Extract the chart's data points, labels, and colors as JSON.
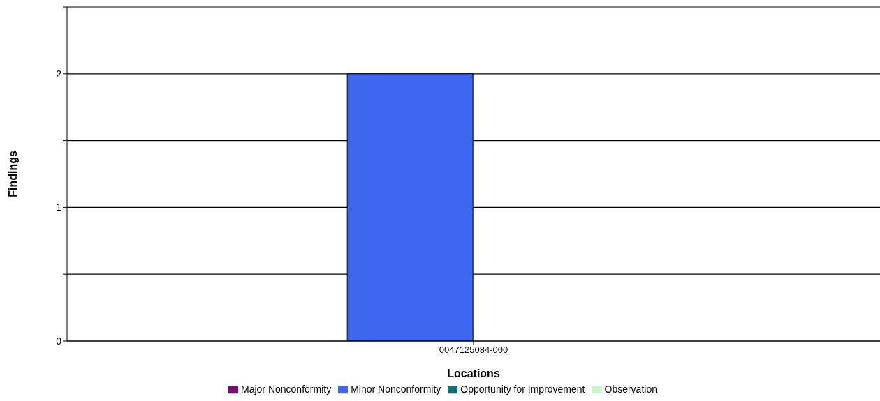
{
  "chart_data": {
    "type": "bar",
    "xlabel": "Locations",
    "ylabel": "Findings",
    "categories": [
      "0047125084-000"
    ],
    "series": [
      {
        "name": "Major Nonconformity",
        "color": "#7d0b72",
        "values": [
          0
        ]
      },
      {
        "name": "Minor Nonconformity",
        "color": "#3f66ef",
        "values": [
          2
        ]
      },
      {
        "name": "Opportunity for Improvement",
        "color": "#0a7373",
        "values": [
          0
        ]
      },
      {
        "name": "Observation",
        "color": "#ccf5cc",
        "values": [
          0
        ]
      }
    ],
    "ylim": [
      0,
      2.5
    ],
    "yticks": [
      0,
      {
        "value": 0.5,
        "label": null
      },
      1,
      {
        "value": 1.5,
        "label": null
      },
      2,
      {
        "value": 2.5,
        "label": null
      }
    ],
    "grid": "y",
    "legend": "bottom"
  }
}
